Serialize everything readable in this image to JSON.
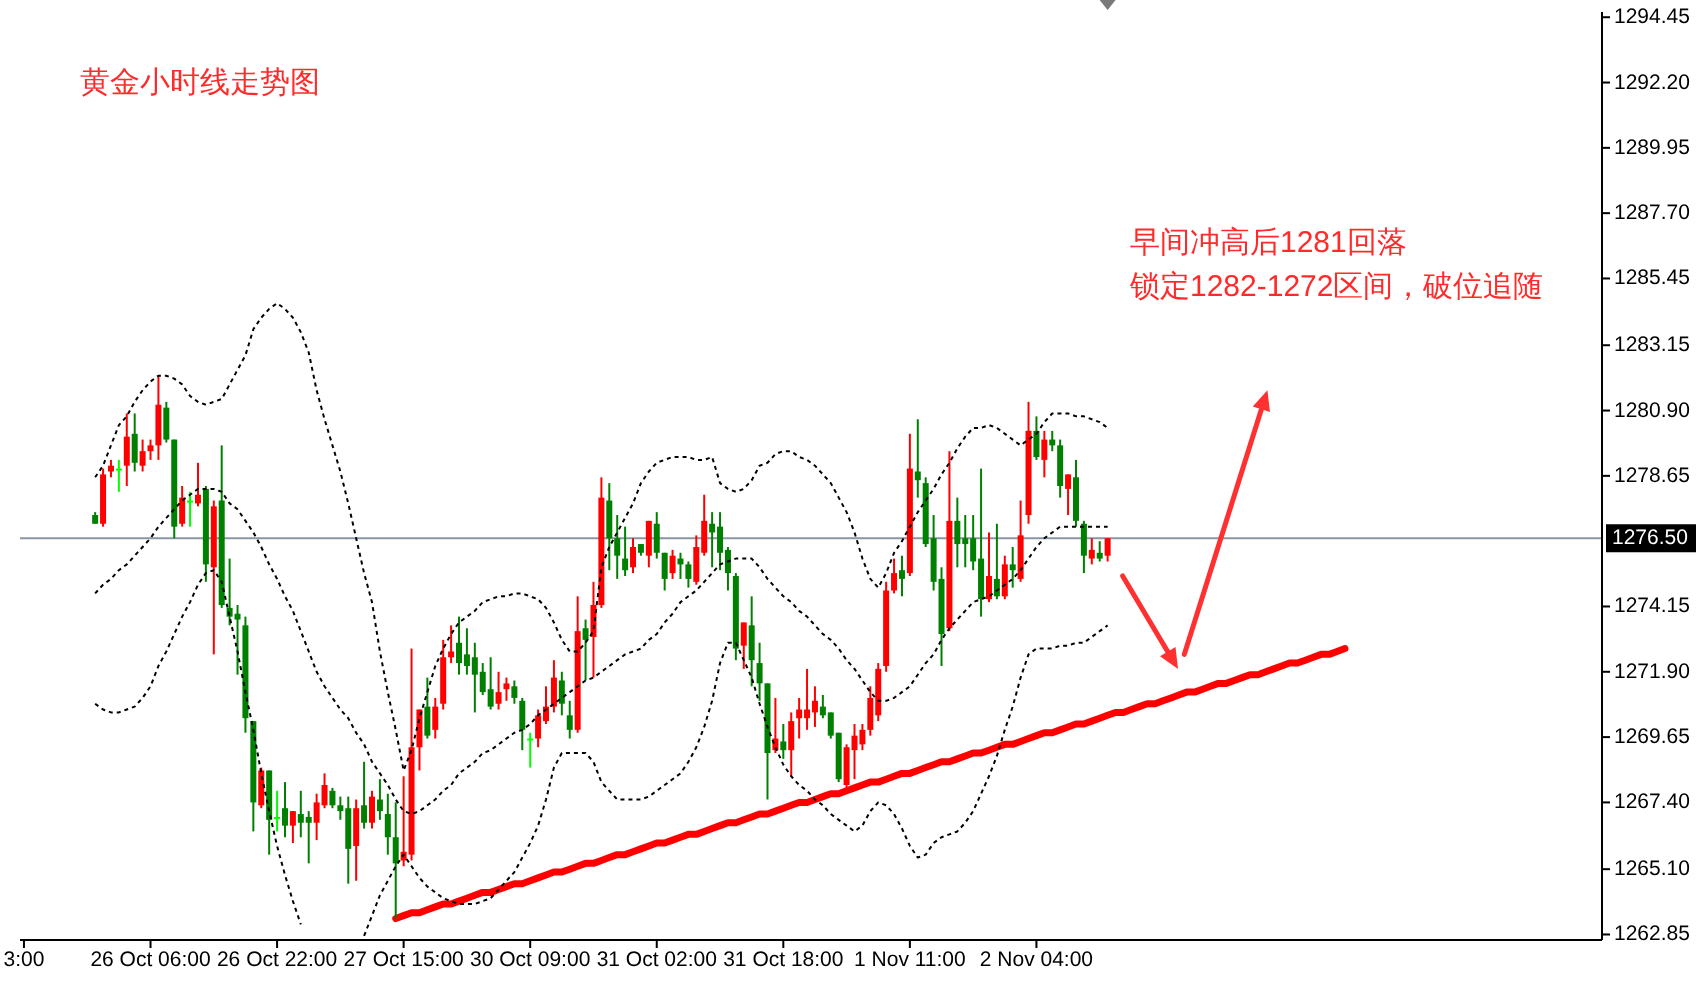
{
  "chart_data": {
    "type": "candlestick",
    "title": "黄金小时线走势图",
    "annotations": [
      "早间冲高后1281回落",
      "锁定1282-1272区间，破位追随"
    ],
    "categories": [
      "3:00",
      null,
      null,
      null,
      null,
      null,
      null,
      null,
      null,
      null,
      null,
      null,
      null,
      null,
      null,
      null,
      "26 Oct 06:00",
      null,
      null,
      null,
      null,
      null,
      null,
      null,
      null,
      null,
      null,
      null,
      null,
      null,
      null,
      null,
      "26 Oct 22:00",
      null,
      null,
      null,
      null,
      null,
      null,
      null,
      null,
      null,
      null,
      null,
      null,
      null,
      null,
      null,
      "27 Oct 15:00",
      null,
      null,
      null,
      null,
      null,
      null,
      null,
      null,
      null,
      null,
      null,
      null,
      null,
      null,
      null,
      "30 Oct 09:00",
      null,
      null,
      null,
      null,
      null,
      null,
      null,
      null,
      null,
      null,
      null,
      null,
      null,
      null,
      null,
      "31 Oct 02:00",
      null,
      null,
      null,
      null,
      null,
      null,
      null,
      null,
      null,
      null,
      null,
      null,
      null,
      null,
      null,
      "31 Oct 18:00",
      null,
      null,
      null,
      null,
      null,
      null,
      null,
      null,
      null,
      null,
      null,
      null,
      null,
      null,
      null,
      "1 Nov 11:00",
      null,
      null,
      null,
      null,
      null,
      null,
      null,
      null,
      null,
      null,
      null,
      null,
      null,
      null,
      null,
      "2 Nov 04:00",
      null,
      null,
      null,
      null,
      null,
      null,
      null,
      null,
      null,
      null,
      null,
      null,
      null,
      null,
      null,
      null,
      null,
      null,
      null,
      null,
      null,
      null,
      null,
      null,
      null,
      null,
      null,
      null,
      null,
      null,
      null,
      null,
      null,
      null,
      null,
      null,
      null,
      null,
      null,
      null,
      null,
      null,
      null,
      null,
      null,
      null,
      null,
      null,
      null,
      null,
      null,
      null,
      null,
      null,
      null,
      null,
      null,
      null,
      null,
      null,
      null,
      null,
      null,
      null,
      null,
      null,
      null,
      null,
      null,
      null,
      null
    ],
    "ohlc": [
      null,
      null,
      null,
      null,
      null,
      null,
      null,
      null,
      null,
      [
        1277.3,
        1277.4,
        1277.0,
        1277.0
      ],
      [
        1277.0,
        1278.9,
        1276.9,
        1278.7
      ],
      [
        1278.8,
        1279.2,
        1278.6,
        1279.0
      ],
      [
        1278.9,
        1279.2,
        1278.1,
        1278.9
      ],
      [
        1279.0,
        1280.8,
        1278.3,
        1280.0
      ],
      [
        1280.1,
        1280.8,
        1278.8,
        1279.1
      ],
      [
        1279.0,
        1279.9,
        1278.8,
        1279.5
      ],
      [
        1279.5,
        1279.9,
        1279.2,
        1279.7
      ],
      [
        1279.7,
        1282.1,
        1279.2,
        1281.1
      ],
      [
        1281.0,
        1281.2,
        1279.8,
        1279.9
      ],
      [
        1279.9,
        1279.9,
        1276.5,
        1276.9
      ],
      [
        1277.0,
        1278.3,
        1276.9,
        1277.9
      ],
      [
        1277.8,
        1278.1,
        1276.9,
        1277.8
      ],
      [
        1277.7,
        1279.1,
        1277.6,
        1278.0
      ],
      [
        1278.2,
        1278.3,
        1275.0,
        1275.6
      ],
      [
        1275.5,
        1277.8,
        1272.5,
        1277.6
      ],
      [
        1277.8,
        1279.7,
        1274.1,
        1274.2
      ],
      [
        1274.1,
        1275.8,
        1273.5,
        1273.8
      ],
      [
        1273.9,
        1274.2,
        1271.8,
        1273.7
      ],
      [
        1273.5,
        1273.8,
        1269.8,
        1270.3
      ],
      [
        1270.2,
        1270.2,
        1266.4,
        1267.4
      ],
      [
        1267.3,
        1268.6,
        1267.2,
        1268.5
      ],
      [
        1268.5,
        1268.5,
        1265.6,
        1266.8
      ],
      [
        1266.9,
        1267.8,
        1266.4,
        1266.9
      ],
      [
        1267.2,
        1268.1,
        1266.2,
        1266.6
      ],
      [
        1266.6,
        1267.1,
        1266.0,
        1267.1
      ],
      [
        1267.0,
        1267.8,
        1266.2,
        1266.7
      ],
      [
        1266.9,
        1267.1,
        1265.3,
        1266.7
      ],
      [
        1266.7,
        1267.7,
        1266.1,
        1267.4
      ],
      [
        1267.3,
        1268.4,
        1267.2,
        1268.0
      ],
      [
        1267.8,
        1267.9,
        1267.2,
        1267.3
      ],
      [
        1267.3,
        1267.6,
        1266.8,
        1267.1
      ],
      [
        1267.2,
        1267.6,
        1264.6,
        1265.8
      ],
      [
        1265.9,
        1267.5,
        1264.7,
        1267.2
      ],
      [
        1267.3,
        1268.8,
        1266.5,
        1266.7
      ],
      [
        1266.7,
        1267.8,
        1266.5,
        1267.6
      ],
      [
        1267.5,
        1268.2,
        1266.8,
        1267.1
      ],
      [
        1267.0,
        1267.7,
        1265.6,
        1266.2
      ],
      [
        1266.2,
        1267.4,
        1263.4,
        1265.3
      ],
      [
        1265.4,
        1268.3,
        1265.2,
        1265.7
      ],
      [
        1265.6,
        1272.7,
        1265.4,
        1269.3
      ],
      [
        1269.3,
        1270.6,
        1268.5,
        1270.6
      ],
      [
        1270.7,
        1271.7,
        1269.6,
        1269.7
      ],
      [
        1269.9,
        1271.0,
        1269.6,
        1270.7
      ],
      [
        1270.8,
        1273.0,
        1270.6,
        1272.4
      ],
      [
        1272.4,
        1273.5,
        1272.2,
        1272.6
      ],
      [
        1272.9,
        1273.8,
        1271.8,
        1272.2
      ],
      [
        1272.5,
        1273.4,
        1271.8,
        1272.1
      ],
      [
        1272.4,
        1272.9,
        1270.5,
        1271.8
      ],
      [
        1271.9,
        1272.2,
        1271.1,
        1271.2
      ],
      [
        1271.3,
        1272.4,
        1270.6,
        1270.7
      ],
      [
        1270.8,
        1271.9,
        1270.6,
        1271.2
      ],
      [
        1271.3,
        1271.7,
        1270.9,
        1271.5
      ],
      [
        1271.4,
        1271.6,
        1270.8,
        1271.0
      ],
      [
        1270.9,
        1271.0,
        1269.2,
        1269.9
      ],
      [
        1269.6,
        1269.8,
        1268.6,
        1269.6
      ],
      [
        1269.6,
        1270.6,
        1269.3,
        1270.4
      ],
      [
        1270.2,
        1271.4,
        1270.1,
        1270.7
      ],
      [
        1270.7,
        1272.3,
        1270.5,
        1271.7
      ],
      [
        1271.6,
        1271.9,
        1270.4,
        1270.8
      ],
      [
        1270.4,
        1270.9,
        1269.6,
        1269.9
      ],
      [
        1269.9,
        1274.5,
        1269.8,
        1273.3
      ],
      [
        1273.4,
        1273.7,
        1271.6,
        1273.0
      ],
      [
        1273.1,
        1275.0,
        1271.7,
        1274.2
      ],
      [
        1274.2,
        1278.6,
        1274.1,
        1277.9
      ],
      [
        1277.8,
        1278.4,
        1275.4,
        1276.5
      ],
      [
        1276.5,
        1277.3,
        1275.1,
        1275.9
      ],
      [
        1275.8,
        1276.9,
        1275.2,
        1275.4
      ],
      [
        1275.5,
        1276.5,
        1275.3,
        1276.2
      ],
      [
        1276.3,
        1276.3,
        1275.9,
        1276.0
      ],
      [
        1275.9,
        1277.1,
        1275.5,
        1277.1
      ],
      [
        1277.0,
        1277.4,
        1275.8,
        1276.0
      ],
      [
        1276.0,
        1276.0,
        1274.7,
        1275.1
      ],
      [
        1275.3,
        1276.1,
        1275.1,
        1275.9
      ],
      [
        1275.8,
        1276.0,
        1275.1,
        1275.6
      ],
      [
        1275.6,
        1275.7,
        1274.8,
        1275.1
      ],
      [
        1275.0,
        1276.6,
        1274.9,
        1276.2
      ],
      [
        1276.0,
        1278.0,
        1275.9,
        1277.1
      ],
      [
        1277.0,
        1277.4,
        1275.5,
        1276.7
      ],
      [
        1276.9,
        1277.4,
        1275.4,
        1276.0
      ],
      [
        1276.1,
        1276.2,
        1274.7,
        1275.3
      ],
      [
        1275.2,
        1275.3,
        1272.3,
        1272.7
      ],
      [
        1272.8,
        1273.6,
        1272.0,
        1273.6
      ],
      [
        1273.5,
        1274.5,
        1271.4,
        1272.3
      ],
      [
        1272.2,
        1272.9,
        1270.9,
        1271.5
      ],
      [
        1271.5,
        1271.5,
        1267.5,
        1269.1
      ],
      [
        1269.2,
        1271.0,
        1269.1,
        1269.6
      ],
      [
        1269.5,
        1270.1,
        1268.9,
        1269.2
      ],
      [
        1269.2,
        1270.5,
        1268.3,
        1270.2
      ],
      [
        1270.3,
        1271.0,
        1269.6,
        1270.6
      ],
      [
        1270.3,
        1272.0,
        1269.9,
        1270.6
      ],
      [
        1270.5,
        1271.4,
        1270.0,
        1270.9
      ],
      [
        1270.7,
        1271.1,
        1270.3,
        1270.4
      ],
      [
        1270.5,
        1270.5,
        1269.6,
        1269.7
      ],
      [
        1269.8,
        1269.8,
        1268.1,
        1268.2
      ],
      [
        1268.0,
        1269.4,
        1267.8,
        1269.3
      ],
      [
        1269.2,
        1270.1,
        1268.2,
        1269.7
      ],
      [
        1269.4,
        1270.1,
        1269.2,
        1269.9
      ],
      [
        1269.9,
        1271.4,
        1269.7,
        1271.0
      ],
      [
        1270.4,
        1272.2,
        1270.2,
        1272.0
      ],
      [
        1272.1,
        1275.0,
        1271.9,
        1274.7
      ],
      [
        1274.7,
        1275.8,
        1274.6,
        1275.3
      ],
      [
        1275.4,
        1275.9,
        1274.5,
        1275.1
      ],
      [
        1275.3,
        1280.1,
        1275.2,
        1278.9
      ],
      [
        1278.8,
        1280.6,
        1277.9,
        1278.5
      ],
      [
        1278.4,
        1278.6,
        1276.2,
        1276.3
      ],
      [
        1276.5,
        1277.3,
        1274.7,
        1275.0
      ],
      [
        1275.1,
        1275.5,
        1272.1,
        1273.2
      ],
      [
        1273.4,
        1279.5,
        1273.3,
        1277.1
      ],
      [
        1277.1,
        1277.9,
        1275.5,
        1276.3
      ],
      [
        1276.5,
        1277.3,
        1275.5,
        1276.3
      ],
      [
        1276.5,
        1277.3,
        1275.4,
        1275.7
      ],
      [
        1275.8,
        1278.9,
        1273.8,
        1274.4
      ],
      [
        1274.4,
        1276.7,
        1274.3,
        1275.2
      ],
      [
        1275.1,
        1277.0,
        1274.4,
        1274.5
      ],
      [
        1274.5,
        1275.9,
        1274.4,
        1275.6
      ],
      [
        1275.6,
        1276.2,
        1274.8,
        1275.4
      ],
      [
        1275.1,
        1277.8,
        1275.0,
        1276.6
      ],
      [
        1277.3,
        1281.2,
        1277.0,
        1280.2
      ],
      [
        1280.2,
        1280.7,
        1279.2,
        1279.3
      ],
      [
        1279.2,
        1280.2,
        1278.6,
        1279.9
      ],
      [
        1279.9,
        1280.2,
        1279.5,
        1279.7
      ],
      [
        1279.7,
        1279.9,
        1277.9,
        1278.3
      ],
      [
        1278.2,
        1278.7,
        1277.3,
        1278.7
      ],
      [
        1278.6,
        1279.2,
        1276.9,
        1277.1
      ],
      [
        1277.0,
        1277.1,
        1275.3,
        1275.9
      ],
      [
        1275.8,
        1276.5,
        1275.6,
        1276.1
      ],
      [
        1276.0,
        1276.4,
        1275.7,
        1275.8
      ],
      [
        1275.9,
        1276.5,
        1275.7,
        1276.5
      ],
      null,
      null,
      null,
      null,
      null,
      null,
      null,
      null,
      null,
      null,
      null,
      null,
      null,
      null,
      null,
      null,
      null,
      null,
      null,
      null,
      null,
      null,
      null,
      null,
      null,
      null,
      null,
      null,
      null,
      null,
      null,
      null,
      null,
      null,
      null,
      null,
      null,
      null,
      null,
      null,
      null,
      null,
      null,
      null,
      null,
      null,
      null,
      null,
      null,
      null,
      null,
      null,
      null,
      null,
      null,
      null,
      null,
      null,
      null,
      null,
      null,
      null
    ],
    "colors": [
      null,
      null,
      null,
      null,
      null,
      null,
      null,
      null,
      null,
      "#008000",
      "#ff0000",
      "#ff0000",
      "#00ff00",
      "#ff0000",
      "#008000",
      "#ff0000",
      "#ff0000",
      "#ff0000",
      "#008000",
      "#008000",
      "#ff0000",
      "#00ff00",
      "#ff0000",
      "#008000",
      "#ff0000",
      "#008000",
      "#008000",
      "#008000",
      "#008000",
      "#008000",
      "#ff0000",
      "#008000",
      "#00ff00",
      "#008000",
      "#ff0000",
      "#008000",
      "#008000",
      "#ff0000",
      "#ff0000",
      "#008000",
      "#008000",
      "#008000",
      "#ff0000",
      "#008000",
      "#ff0000",
      "#008000",
      "#008000",
      "#008000",
      "#ff0000",
      "#ff0000",
      "#ff0000",
      "#008000",
      "#ff0000",
      "#ff0000",
      "#ff0000",
      "#008000",
      "#008000",
      "#008000",
      "#008000",
      "#008000",
      "#ff0000",
      "#ff0000",
      "#008000",
      "#008000",
      "#00ff00",
      "#ff0000",
      "#ff0000",
      "#ff0000",
      "#008000",
      "#008000",
      "#ff0000",
      "#008000",
      "#ff0000",
      "#ff0000",
      "#008000",
      "#008000",
      "#008000",
      "#ff0000",
      "#008000",
      "#ff0000",
      "#008000",
      "#008000",
      "#ff0000",
      "#008000",
      "#008000",
      "#ff0000",
      "#ff0000",
      "#008000",
      "#008000",
      "#008000",
      "#008000",
      "#ff0000",
      "#008000",
      "#008000",
      "#008000",
      "#ff0000",
      "#008000",
      "#ff0000",
      "#ff0000",
      "#ff0000",
      "#ff0000",
      "#008000",
      "#008000",
      "#008000",
      "#ff0000",
      "#ff0000",
      "#ff0000",
      "#ff0000",
      "#ff0000",
      "#ff0000",
      "#ff0000",
      "#008000",
      "#ff0000",
      "#008000",
      "#008000",
      "#008000",
      "#008000",
      "#ff0000",
      "#008000",
      "#008000",
      "#008000",
      "#008000",
      "#ff0000",
      "#008000",
      "#ff0000",
      "#008000",
      "#ff0000",
      "#ff0000",
      "#008000",
      "#ff0000",
      "#008000",
      "#008000",
      "#ff0000",
      "#008000",
      "#008000",
      "#ff0000",
      "#008000",
      "#ff0000",
      null,
      null,
      null,
      null,
      null,
      null,
      null,
      null,
      null,
      null,
      null,
      null,
      null,
      null,
      null,
      null,
      null,
      null,
      null,
      null,
      null,
      null,
      null,
      null,
      null,
      null,
      null,
      null,
      null,
      null,
      null,
      null,
      null,
      null,
      null,
      null,
      null,
      null,
      null,
      null,
      null,
      null,
      null,
      null,
      null,
      null,
      null,
      null,
      null,
      null,
      null,
      null,
      null,
      null,
      null,
      null,
      null,
      null,
      null,
      null,
      null,
      null
    ],
    "series": [
      {
        "type": "line",
        "color": "#000000",
        "line_style": "dotted",
        "values": [
          null,
          null,
          null,
          null,
          null,
          null,
          null,
          null,
          null,
          1278.6,
          1279.0,
          1279.7,
          1280.4,
          1280.7,
          1281.2,
          1281.6,
          1281.9,
          1282.1,
          1282.1,
          1282.0,
          1281.8,
          1281.4,
          1281.2,
          1281.1,
          1281.2,
          1281.3,
          1281.8,
          1282.3,
          1282.8,
          1283.7,
          1284.1,
          1284.4,
          1284.6,
          1284.4,
          1284.1,
          1283.6,
          1282.9,
          1281.6,
          1280.6,
          1279.7,
          1278.8,
          1277.7,
          1276.5,
          1275.3,
          1274.3,
          1272.6,
          1271.2,
          1269.9,
          1268.5,
          1269.2,
          1270.3,
          1271.2,
          1272.1,
          1272.7,
          1273.2,
          1273.6,
          1273.8,
          1274.0,
          1274.3,
          1274.4,
          1274.5,
          1274.5,
          1274.6,
          1274.6,
          1274.5,
          1274.4,
          1274.1,
          1273.6,
          1273.0,
          1272.6,
          1272.6,
          1272.9,
          1273.3,
          1275.5,
          1276.2,
          1276.7,
          1277.2,
          1277.7,
          1278.4,
          1278.8,
          1279.1,
          1279.2,
          1279.3,
          1279.3,
          1279.3,
          1279.2,
          1279.2,
          1279.3,
          1278.4,
          1278.2,
          1278.1,
          1278.2,
          1278.5,
          1279.0,
          1279.1,
          1279.4,
          1279.5,
          1279.5,
          1279.3,
          1279.2,
          1279.0,
          1278.7,
          1278.4,
          1277.9,
          1277.4,
          1276.7,
          1275.8,
          1275.1,
          1274.8,
          1275.3,
          1276.0,
          1276.4,
          1276.9,
          1277.4,
          1277.8,
          1278.2,
          1278.7,
          1279.1,
          1279.6,
          1280.0,
          1280.3,
          1280.3,
          1280.4,
          1280.3,
          1280.1,
          1279.9,
          1279.7,
          1279.9,
          1280.1,
          1280.5,
          1280.8,
          1280.8,
          1280.8,
          1280.7,
          1280.7,
          1280.6,
          1280.5,
          1280.3,
          null,
          null,
          null,
          null,
          null,
          null,
          null,
          null,
          null,
          null,
          null,
          null,
          null,
          null,
          null,
          null,
          null,
          null,
          null,
          null,
          null,
          null,
          null,
          null,
          null,
          null,
          null,
          null,
          null,
          null,
          null,
          null,
          null,
          null,
          null,
          null,
          null,
          null,
          null,
          null,
          null,
          null,
          null,
          null,
          null,
          null,
          null,
          null,
          null,
          null,
          null,
          null,
          null,
          null,
          null,
          null,
          null,
          null,
          null,
          null,
          null,
          null
        ]
      },
      {
        "type": "line",
        "color": "#000000",
        "line_style": "dotted",
        "values": [
          null,
          null,
          null,
          null,
          null,
          null,
          null,
          null,
          null,
          1274.6,
          1274.9,
          1275.1,
          1275.4,
          1275.6,
          1275.9,
          1276.2,
          1276.5,
          1276.9,
          1277.2,
          1277.5,
          1277.8,
          1278.0,
          1278.2,
          1278.2,
          1278.2,
          1278.1,
          1277.7,
          1277.5,
          1277.1,
          1276.7,
          1276.2,
          1275.6,
          1275.1,
          1274.5,
          1274.0,
          1273.3,
          1272.6,
          1271.9,
          1271.4,
          1271.0,
          1270.6,
          1270.3,
          1269.8,
          1269.4,
          1268.8,
          1268.4,
          1268.0,
          1267.5,
          1267.1,
          1267.0,
          1267.1,
          1267.3,
          1267.5,
          1267.8,
          1268.0,
          1268.4,
          1268.6,
          1268.8,
          1269.1,
          1269.2,
          1269.4,
          1269.6,
          1269.8,
          1269.9,
          1270.1,
          1270.4,
          1270.6,
          1270.8,
          1271.0,
          1271.2,
          1271.4,
          1271.6,
          1271.7,
          1271.9,
          1272.1,
          1272.3,
          1272.5,
          1272.6,
          1272.7,
          1273.0,
          1273.2,
          1273.6,
          1273.9,
          1274.3,
          1274.5,
          1274.7,
          1275.0,
          1275.3,
          1275.6,
          1275.7,
          1275.8,
          1275.8,
          1275.8,
          1275.5,
          1275.1,
          1274.8,
          1274.5,
          1274.3,
          1274.0,
          1273.8,
          1273.5,
          1273.2,
          1273.0,
          1272.7,
          1272.3,
          1272.0,
          1271.6,
          1271.2,
          1270.9,
          1270.9,
          1271.0,
          1271.2,
          1271.4,
          1271.8,
          1272.2,
          1272.5,
          1273.0,
          1273.4,
          1273.7,
          1274.0,
          1274.3,
          1274.4,
          1274.5,
          1274.7,
          1274.9,
          1275.1,
          1275.4,
          1275.8,
          1276.2,
          1276.5,
          1276.7,
          1276.9,
          1276.9,
          1276.9,
          1276.9,
          1276.9,
          1276.9,
          1276.9,
          null,
          null,
          null,
          null,
          null,
          null,
          null,
          null,
          null,
          null,
          null,
          null,
          null,
          null,
          null,
          null,
          null,
          null,
          null,
          null,
          null,
          null,
          null,
          null,
          null,
          null,
          null,
          null,
          null,
          null,
          null,
          null,
          null,
          null,
          null,
          null,
          null,
          null,
          null,
          null,
          null,
          null,
          null,
          null,
          null,
          null,
          null,
          null,
          null,
          null,
          null,
          null,
          null,
          null,
          null,
          null,
          null,
          null,
          null,
          null,
          null,
          null
        ]
      },
      {
        "type": "line",
        "color": "#000000",
        "line_style": "dotted",
        "values": [
          null,
          null,
          null,
          null,
          null,
          null,
          null,
          null,
          null,
          1270.8,
          1270.6,
          1270.5,
          1270.5,
          1270.6,
          1270.7,
          1271.0,
          1271.4,
          1272.1,
          1272.6,
          1273.2,
          1273.8,
          1274.3,
          1274.9,
          1275.3,
          1275.4,
          1275.0,
          1273.8,
          1272.6,
          1271.2,
          1269.9,
          1268.4,
          1267.1,
          1265.9,
          1264.9,
          1264.0,
          1263.2,
          null,
          null,
          null,
          null,
          null,
          null,
          null,
          1262.8,
          1263.5,
          1264.2,
          1264.7,
          1265.2,
          1265.6,
          1265.2,
          1264.8,
          1264.5,
          1264.3,
          1264.1,
          1264.0,
          1263.9,
          1263.9,
          1263.9,
          1264.0,
          1264.1,
          1264.4,
          1264.7,
          1265.0,
          1265.5,
          1266.0,
          1266.6,
          1267.5,
          1268.6,
          1269.1,
          1269.1,
          1269.1,
          1269.1,
          1268.8,
          1268.1,
          1267.8,
          1267.5,
          1267.5,
          1267.5,
          1267.5,
          1267.6,
          1267.8,
          1268.0,
          1268.2,
          1268.4,
          1268.8,
          1269.3,
          1270.0,
          1270.9,
          1272.2,
          1272.9,
          1272.9,
          1272.3,
          1271.7,
          1270.8,
          1270.0,
          1269.3,
          1268.7,
          1268.3,
          1268.0,
          1267.8,
          1267.5,
          1267.3,
          1267.0,
          1266.8,
          1266.6,
          1266.4,
          1266.6,
          1267.1,
          1267.4,
          1267.3,
          1267.0,
          1266.5,
          1265.9,
          1265.5,
          1265.6,
          1266.0,
          1266.2,
          1266.3,
          1266.4,
          1266.7,
          1267.1,
          1267.7,
          1268.3,
          1269.0,
          1269.9,
          1270.7,
          1271.7,
          1272.5,
          1272.7,
          1272.7,
          1272.7,
          1272.8,
          1272.8,
          1272.9,
          1272.9,
          1273.1,
          1273.3,
          1273.5,
          null,
          null,
          null,
          null,
          null,
          null,
          null,
          null,
          null,
          null,
          null,
          null,
          null,
          null,
          null,
          null,
          null,
          null,
          null,
          null,
          null,
          null,
          null,
          null,
          null,
          null,
          null,
          null,
          null,
          null,
          null,
          null,
          null,
          null,
          null,
          null,
          null,
          null,
          null,
          null,
          null,
          null,
          null,
          null,
          null,
          null,
          null,
          null,
          null,
          null,
          null,
          null,
          null,
          null,
          null,
          null,
          null,
          null,
          null,
          null,
          null,
          null
        ]
      },
      {
        "type": "line",
        "color": "#ff0000",
        "line_style": "solid",
        "values": [
          null,
          null,
          null,
          null,
          null,
          null,
          null,
          null,
          null,
          null,
          null,
          null,
          null,
          null,
          null,
          null,
          null,
          null,
          null,
          null,
          null,
          null,
          null,
          null,
          null,
          null,
          null,
          null,
          null,
          null,
          null,
          null,
          null,
          null,
          null,
          null,
          null,
          null,
          null,
          null,
          null,
          null,
          null,
          null,
          null,
          null,
          null,
          1263.4,
          1263.5,
          1263.6,
          1263.6,
          1263.7,
          1263.8,
          1263.9,
          1263.9,
          1264.0,
          1264.1,
          1264.2,
          1264.3,
          1264.3,
          1264.4,
          1264.5,
          1264.6,
          1264.6,
          1264.7,
          1264.8,
          1264.9,
          1265.0,
          1265.0,
          1265.1,
          1265.2,
          1265.3,
          1265.3,
          1265.4,
          1265.5,
          1265.6,
          1265.6,
          1265.7,
          1265.8,
          1265.9,
          1266.0,
          1266.0,
          1266.1,
          1266.2,
          1266.3,
          1266.3,
          1266.4,
          1266.5,
          1266.6,
          1266.7,
          1266.7,
          1266.8,
          1266.9,
          1267.0,
          1267.0,
          1267.1,
          1267.2,
          1267.3,
          1267.4,
          1267.4,
          1267.5,
          1267.6,
          1267.7,
          1267.7,
          1267.8,
          1267.9,
          1268.0,
          1268.1,
          1268.1,
          1268.2,
          1268.3,
          1268.4,
          1268.4,
          1268.5,
          1268.6,
          1268.7,
          1268.8,
          1268.8,
          1268.9,
          1269.0,
          1269.1,
          1269.1,
          1269.2,
          1269.3,
          1269.4,
          1269.4,
          1269.5,
          1269.6,
          1269.7,
          1269.8,
          1269.8,
          1269.9,
          1270.0,
          1270.1,
          1270.1,
          1270.2,
          1270.3,
          1270.4,
          1270.5,
          1270.5,
          1270.6,
          1270.7,
          1270.8,
          1270.8,
          1270.9,
          1271.0,
          1271.1,
          1271.2,
          1271.2,
          1271.3,
          1271.4,
          1271.5,
          1271.5,
          1271.6,
          1271.7,
          1271.8,
          1271.8,
          1271.9,
          1272.0,
          1272.1,
          1272.2,
          1272.2,
          1272.3,
          1272.4,
          1272.5,
          1272.5,
          1272.6,
          1272.7,
          null,
          null,
          null,
          null,
          null,
          null,
          null,
          null,
          null,
          null,
          null,
          null,
          null,
          null,
          null,
          null,
          null,
          null,
          null,
          null,
          null,
          null,
          null,
          null,
          null,
          null,
          null,
          null,
          null,
          null,
          null,
          null
        ]
      }
    ],
    "ylim": [
      1262.66,
      1294.63
    ],
    "yticks": [
      {
        "value": 1294.45,
        "label": "1294.45"
      },
      {
        "value": 1292.2,
        "label": "1292.20"
      },
      {
        "value": 1289.95,
        "label": "1289.95"
      },
      {
        "value": 1287.7,
        "label": "1287.70"
      },
      {
        "value": 1285.45,
        "label": "1285.45"
      },
      {
        "value": 1283.15,
        "label": "1283.15"
      },
      {
        "value": 1280.9,
        "label": "1280.90"
      },
      {
        "value": 1278.65,
        "label": "1278.65"
      },
      {
        "value": 1274.15,
        "label": "1274.15"
      },
      {
        "value": 1271.9,
        "label": "1271.90"
      },
      {
        "value": 1269.65,
        "label": "1269.65"
      },
      {
        "value": 1267.4,
        "label": "1267.40"
      },
      {
        "value": 1265.1,
        "label": "1265.10"
      },
      {
        "value": 1262.85,
        "label": "1262.85"
      }
    ],
    "ref_lines": [
      {
        "axis": "y",
        "value": 1276.5,
        "label": "1276.50",
        "color": "#8a96a3"
      }
    ]
  }
}
